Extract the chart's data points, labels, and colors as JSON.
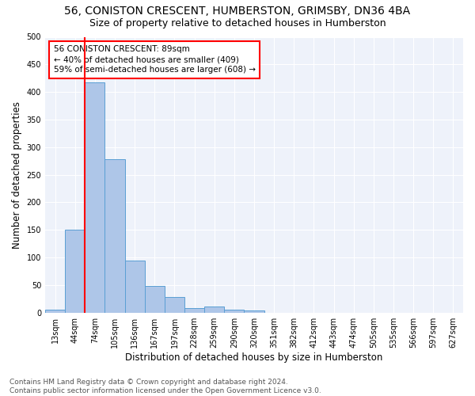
{
  "title1": "56, CONISTON CRESCENT, HUMBERSTON, GRIMSBY, DN36 4BA",
  "title2": "Size of property relative to detached houses in Humberston",
  "xlabel": "Distribution of detached houses by size in Humberston",
  "ylabel": "Number of detached properties",
  "footer1": "Contains HM Land Registry data © Crown copyright and database right 2024.",
  "footer2": "Contains public sector information licensed under the Open Government Licence v3.0.",
  "bar_labels": [
    "13sqm",
    "44sqm",
    "74sqm",
    "105sqm",
    "136sqm",
    "167sqm",
    "197sqm",
    "228sqm",
    "259sqm",
    "290sqm",
    "320sqm",
    "351sqm",
    "382sqm",
    "412sqm",
    "443sqm",
    "474sqm",
    "505sqm",
    "535sqm",
    "566sqm",
    "597sqm",
    "627sqm"
  ],
  "bar_values": [
    5,
    150,
    418,
    278,
    95,
    49,
    29,
    8,
    11,
    5,
    4,
    0,
    0,
    0,
    0,
    0,
    0,
    0,
    0,
    0,
    0
  ],
  "bar_color": "#aec6e8",
  "bar_edge_color": "#5a9fd4",
  "vline_index": 2,
  "vline_color": "red",
  "annotation_text": "56 CONISTON CRESCENT: 89sqm\n← 40% of detached houses are smaller (409)\n59% of semi-detached houses are larger (608) →",
  "annotation_box_color": "white",
  "annotation_box_edge": "red",
  "ylim": [
    0,
    500
  ],
  "yticks": [
    0,
    50,
    100,
    150,
    200,
    250,
    300,
    350,
    400,
    450,
    500
  ],
  "background_color": "#eef2fa",
  "grid_color": "white",
  "title1_fontsize": 10,
  "title2_fontsize": 9,
  "xlabel_fontsize": 8.5,
  "ylabel_fontsize": 8.5,
  "tick_fontsize": 7,
  "footer_fontsize": 6.5,
  "annotation_fontsize": 7.5
}
